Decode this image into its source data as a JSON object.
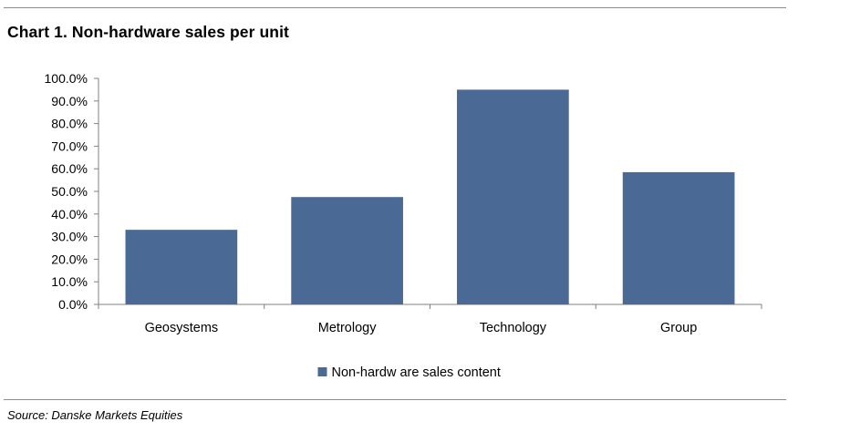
{
  "header": {
    "title": "Chart 1. Non-hardware sales per unit"
  },
  "footer": {
    "source": "Source: Danske Markets Equities"
  },
  "colors": {
    "bar": "#4a6994",
    "axis": "#808080",
    "rule": "#8c8c8c"
  },
  "chart_data": {
    "type": "bar",
    "title": "Chart 1. Non-hardware sales per unit",
    "xlabel": "",
    "ylabel": "",
    "categories": [
      "Geosystems",
      "Metrology",
      "Technology",
      "Group"
    ],
    "series": [
      {
        "name": "Non-hardw are sales content",
        "values": [
          33.0,
          47.5,
          95.0,
          58.5
        ]
      }
    ],
    "ylim": [
      0,
      100
    ],
    "y_ticks": [
      0,
      10,
      20,
      30,
      40,
      50,
      60,
      70,
      80,
      90,
      100
    ],
    "y_tick_labels": [
      "0.0%",
      "10.0%",
      "20.0%",
      "30.0%",
      "40.0%",
      "50.0%",
      "60.0%",
      "70.0%",
      "80.0%",
      "90.0%",
      "100.0%"
    ],
    "grid": false,
    "legend_position": "bottom-center"
  }
}
